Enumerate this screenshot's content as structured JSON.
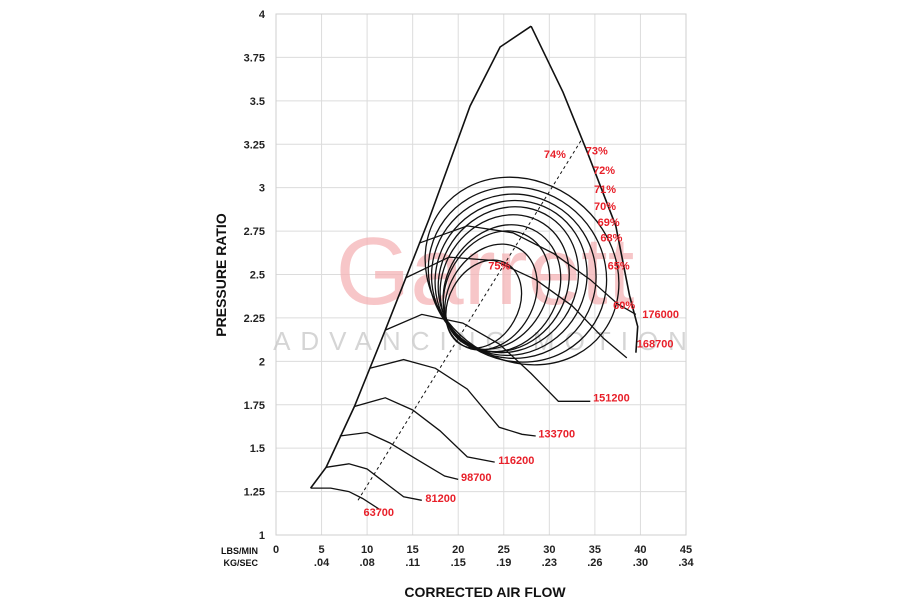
{
  "chart_data": {
    "type": "line",
    "title": "",
    "xlabel": "CORRECTED AIR FLOW",
    "ylabel": "PRESSURE RATIO",
    "x_unit_labels": [
      "LBS/MIN",
      "KG/SEC"
    ],
    "xlim": [
      0,
      45
    ],
    "ylim": [
      1,
      4
    ],
    "x_ticks": [
      0,
      5,
      10,
      15,
      20,
      25,
      30,
      35,
      40,
      45
    ],
    "x_tick_labels": [
      "0",
      "5",
      "10",
      "15",
      "20",
      "25",
      "30",
      "35",
      "40",
      "45"
    ],
    "x_secondary_tick_labels": [
      "",
      ".04",
      ".08",
      ".11",
      ".15",
      ".19",
      ".23",
      ".26",
      ".30",
      ".34"
    ],
    "y_ticks": [
      1,
      1.25,
      1.5,
      1.75,
      2,
      2.25,
      2.5,
      2.75,
      3,
      3.25,
      3.5,
      3.75,
      4
    ],
    "y_tick_labels": [
      "1",
      "1.25",
      "1.5",
      "1.75",
      "2",
      "2.25",
      "2.5",
      "2.75",
      "3",
      "3.25",
      "3.5",
      "3.75",
      "4"
    ],
    "grid": true,
    "watermark": {
      "brand": "Garrett",
      "tagline": "ADVANCING MOTION"
    },
    "surge_line": [
      [
        3.8,
        1.27
      ],
      [
        5.5,
        1.39
      ],
      [
        8.6,
        1.74
      ],
      [
        12,
        2.18
      ],
      [
        16.8,
        2.82
      ],
      [
        21.3,
        3.47
      ],
      [
        24.6,
        3.81
      ],
      [
        28,
        3.93
      ]
    ],
    "choke_line": [
      [
        28,
        3.93
      ],
      [
        31.5,
        3.55
      ],
      [
        34.2,
        3.2
      ],
      [
        37.3,
        2.78
      ],
      [
        38.8,
        2.38
      ],
      [
        39.7,
        2.2
      ],
      [
        39.5,
        2.05
      ]
    ],
    "speed_lines": [
      {
        "rpm": "63700",
        "points": [
          [
            3.8,
            1.27
          ],
          [
            6,
            1.27
          ],
          [
            8,
            1.25
          ],
          [
            9.5,
            1.21
          ],
          [
            11.3,
            1.15
          ]
        ]
      },
      {
        "rpm": "81200",
        "points": [
          [
            5.5,
            1.39
          ],
          [
            8,
            1.41
          ],
          [
            10,
            1.38
          ],
          [
            12,
            1.3
          ],
          [
            14,
            1.22
          ],
          [
            16,
            1.2
          ]
        ]
      },
      {
        "rpm": "98700",
        "points": [
          [
            7,
            1.57
          ],
          [
            10,
            1.59
          ],
          [
            12.5,
            1.53
          ],
          [
            15,
            1.45
          ],
          [
            18.5,
            1.34
          ],
          [
            20,
            1.32
          ]
        ]
      },
      {
        "rpm": "116200",
        "points": [
          [
            8.6,
            1.74
          ],
          [
            12,
            1.79
          ],
          [
            15,
            1.72
          ],
          [
            18,
            1.6
          ],
          [
            21,
            1.45
          ],
          [
            24,
            1.42
          ]
        ]
      },
      {
        "rpm": "133700",
        "points": [
          [
            10.3,
            1.96
          ],
          [
            14,
            2.01
          ],
          [
            17.5,
            1.96
          ],
          [
            21,
            1.84
          ],
          [
            24.5,
            1.62
          ],
          [
            27,
            1.58
          ],
          [
            28.5,
            1.57
          ]
        ]
      },
      {
        "rpm": "151200",
        "points": [
          [
            12,
            2.18
          ],
          [
            16,
            2.27
          ],
          [
            20.5,
            2.22
          ],
          [
            24.5,
            2.1
          ],
          [
            28,
            1.93
          ],
          [
            31,
            1.77
          ],
          [
            34.5,
            1.77
          ]
        ]
      },
      {
        "rpm": "168700",
        "points": [
          [
            14.2,
            2.48
          ],
          [
            19,
            2.6
          ],
          [
            24,
            2.58
          ],
          [
            28.5,
            2.47
          ],
          [
            32.5,
            2.32
          ],
          [
            36,
            2.13
          ],
          [
            38.5,
            2.02
          ]
        ]
      },
      {
        "rpm": "176000",
        "points": [
          [
            15.7,
            2.68
          ],
          [
            21,
            2.78
          ],
          [
            26,
            2.74
          ],
          [
            30.5,
            2.62
          ],
          [
            34.5,
            2.47
          ],
          [
            37.5,
            2.33
          ],
          [
            39.5,
            2.27
          ]
        ]
      }
    ],
    "efficiency_islands": [
      {
        "label": "75%",
        "center": [
          22.8,
          2.33
        ],
        "rx": 10.2,
        "ry": 0.33,
        "angle_deg": 61
      },
      {
        "label": "74%",
        "center": [
          23.6,
          2.37
        ],
        "rx": 12.3,
        "ry": 0.42,
        "angle_deg": 60
      },
      {
        "label": "73%",
        "center": [
          24.2,
          2.41
        ],
        "rx": 13.7,
        "ry": 0.5,
        "angle_deg": 59
      },
      {
        "label": "72%",
        "center": [
          24.8,
          2.42
        ],
        "rx": 14.6,
        "ry": 0.57,
        "angle_deg": 58
      },
      {
        "label": "71%",
        "center": [
          25.1,
          2.45
        ],
        "rx": 15.6,
        "ry": 0.64,
        "angle_deg": 57
      },
      {
        "label": "70%",
        "center": [
          25.5,
          2.47
        ],
        "rx": 16.5,
        "ry": 0.71,
        "angle_deg": 56
      },
      {
        "label": "69%",
        "center": [
          25.8,
          2.48
        ],
        "rx": 17.3,
        "ry": 0.79,
        "angle_deg": 55
      },
      {
        "label": "68%",
        "center": [
          26.1,
          2.49
        ],
        "rx": 18.0,
        "ry": 0.88,
        "angle_deg": 54
      },
      {
        "label": "65%",
        "center": [
          26.5,
          2.5
        ],
        "rx": 18.8,
        "ry": 0.98,
        "angle_deg": 53
      },
      {
        "label": "60%",
        "center": [
          27.0,
          2.52
        ],
        "rx": 19.5,
        "ry": 1.1,
        "angle_deg": 52
      }
    ],
    "peak_efficiency_line": [
      [
        9,
        1.2
      ],
      [
        35,
        3.4
      ]
    ],
    "annotations": [
      {
        "text": "63700",
        "x": 9.6,
        "y": 1.11
      },
      {
        "text": "81200",
        "x": 16.4,
        "y": 1.19
      },
      {
        "text": "98700",
        "x": 20.3,
        "y": 1.31
      },
      {
        "text": "116200",
        "x": 24.4,
        "y": 1.41
      },
      {
        "text": "133700",
        "x": 28.8,
        "y": 1.56
      },
      {
        "text": "151200",
        "x": 34.8,
        "y": 1.77
      },
      {
        "text": "168700",
        "x": 39.6,
        "y": 2.08
      },
      {
        "text": "176000",
        "x": 40.2,
        "y": 2.25
      },
      {
        "text": "75%",
        "x": 23.3,
        "y": 2.53
      },
      {
        "text": "74%",
        "x": 29.4,
        "y": 3.17
      },
      {
        "text": "73%",
        "x": 34.0,
        "y": 3.19
      },
      {
        "text": "72%",
        "x": 34.8,
        "y": 3.08
      },
      {
        "text": "71%",
        "x": 34.9,
        "y": 2.97
      },
      {
        "text": "70%",
        "x": 34.9,
        "y": 2.87
      },
      {
        "text": "69%",
        "x": 35.3,
        "y": 2.78
      },
      {
        "text": "68%",
        "x": 35.6,
        "y": 2.69
      },
      {
        "text": "65%",
        "x": 36.4,
        "y": 2.53
      },
      {
        "text": "60%",
        "x": 37.0,
        "y": 2.3
      }
    ]
  }
}
